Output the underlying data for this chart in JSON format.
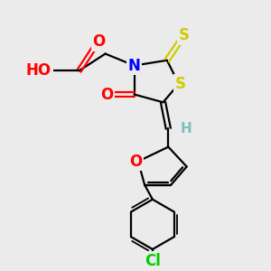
{
  "bg_color": "#ebebeb",
  "atom_colors": {
    "O": "#ff0000",
    "N": "#0000ff",
    "S": "#cccc00",
    "Cl": "#00cc00",
    "C": "#000000",
    "H": "#7fbfbf"
  },
  "bond_color": "#000000",
  "bond_width": 1.6,
  "font_size_atom": 11,
  "fig_w": 3.0,
  "fig_h": 3.0,
  "dpi": 100
}
